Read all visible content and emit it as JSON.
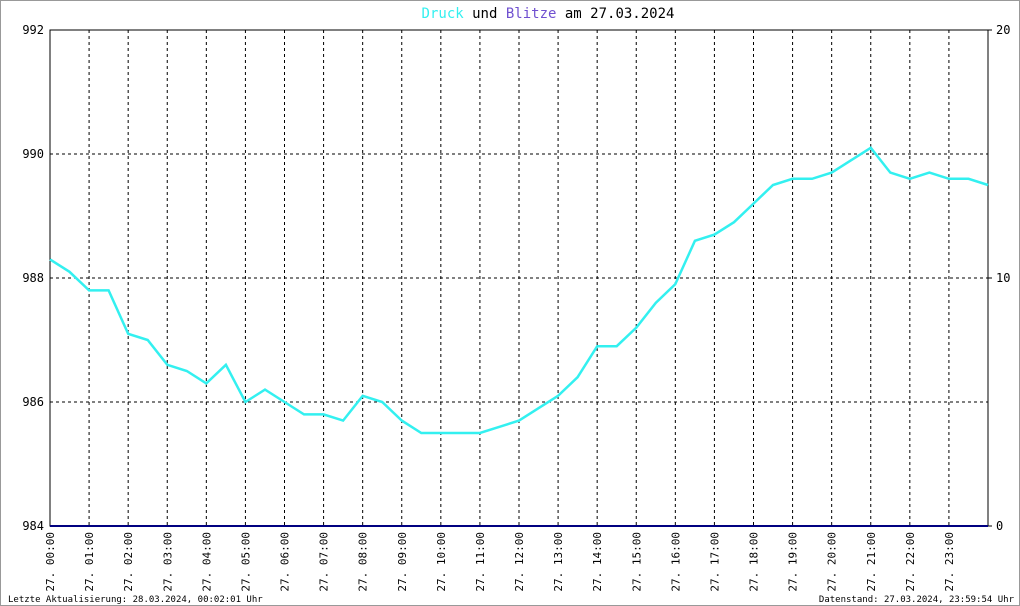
{
  "chart_data": {
    "type": "line",
    "title_parts": [
      "und",
      "am 27.03.2024"
    ],
    "footer_left": "Letzte Aktualisierung: 28.03.2024, 00:02:01 Uhr",
    "footer_right": "Datenstand: 27.03.2024, 23:59:54 Uhr",
    "grid": true,
    "xlim": [
      0,
      24
    ],
    "xticks": [
      {
        "value": 0,
        "label": "27. 00:00"
      },
      {
        "value": 1,
        "label": "27. 01:00"
      },
      {
        "value": 2,
        "label": "27. 02:00"
      },
      {
        "value": 3,
        "label": "27. 03:00"
      },
      {
        "value": 4,
        "label": "27. 04:00"
      },
      {
        "value": 5,
        "label": "27. 05:00"
      },
      {
        "value": 6,
        "label": "27. 06:00"
      },
      {
        "value": 7,
        "label": "27. 07:00"
      },
      {
        "value": 8,
        "label": "27. 08:00"
      },
      {
        "value": 9,
        "label": "27. 09:00"
      },
      {
        "value": 10,
        "label": "27. 10:00"
      },
      {
        "value": 11,
        "label": "27. 11:00"
      },
      {
        "value": 12,
        "label": "27. 12:00"
      },
      {
        "value": 13,
        "label": "27. 13:00"
      },
      {
        "value": 14,
        "label": "27. 14:00"
      },
      {
        "value": 15,
        "label": "27. 15:00"
      },
      {
        "value": 16,
        "label": "27. 16:00"
      },
      {
        "value": 17,
        "label": "27. 17:00"
      },
      {
        "value": 18,
        "label": "27. 18:00"
      },
      {
        "value": 19,
        "label": "27. 19:00"
      },
      {
        "value": 20,
        "label": "27. 20:00"
      },
      {
        "value": 21,
        "label": "27. 21:00"
      },
      {
        "value": 22,
        "label": "27. 22:00"
      },
      {
        "value": 23,
        "label": "27. 23:00"
      }
    ],
    "ylim": [
      984,
      992
    ],
    "yticks": [
      984,
      986,
      988,
      990,
      992
    ],
    "y2lim": [
      0,
      20
    ],
    "y2ticks": [
      0,
      10,
      20
    ],
    "series": [
      {
        "name": "Druck",
        "color": "#33f0f0",
        "x": [
          0,
          0.5,
          1,
          1.5,
          2,
          2.5,
          3,
          3.5,
          4,
          4.5,
          5,
          5.5,
          6,
          6.5,
          7,
          7.5,
          8,
          8.5,
          9,
          9.5,
          10,
          10.5,
          11,
          11.5,
          12,
          12.5,
          13,
          13.5,
          14,
          14.5,
          15,
          15.5,
          16,
          16.5,
          17,
          17.5,
          18,
          18.5,
          19,
          19.5,
          20,
          20.5,
          21,
          21.5,
          22,
          22.5,
          23,
          23.5,
          24
        ],
        "values": [
          988.3,
          988.1,
          987.8,
          987.8,
          987.1,
          987.0,
          986.6,
          986.5,
          986.3,
          986.6,
          986.0,
          986.2,
          986.0,
          985.8,
          985.8,
          985.7,
          986.1,
          986.0,
          985.7,
          985.5,
          985.5,
          985.5,
          985.5,
          985.6,
          985.7,
          985.9,
          986.1,
          986.4,
          986.9,
          986.9,
          987.2,
          987.6,
          987.9,
          988.6,
          988.7,
          988.9,
          989.2,
          989.5,
          989.6,
          989.6,
          989.7,
          989.9,
          990.1,
          989.7,
          989.6,
          989.7,
          989.6,
          989.6,
          989.5
        ]
      },
      {
        "name": "Blitze",
        "color": "#000080",
        "axis": "y2",
        "x": [
          0,
          24
        ],
        "values": [
          0,
          0
        ]
      }
    ]
  }
}
